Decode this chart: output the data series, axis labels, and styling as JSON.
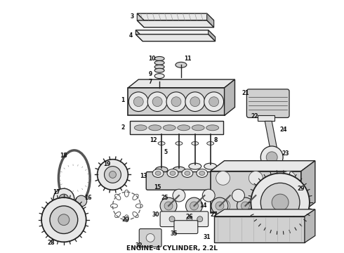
{
  "title": "ENGINE-4 CYLINDER, 2.2L",
  "title_fontsize": 6.5,
  "title_fontweight": "bold",
  "bg_color": "#ffffff",
  "fig_width": 4.9,
  "fig_height": 3.6,
  "dpi": 100,
  "label_fontsize": 5.5,
  "label_color": "#111111",
  "edge_color": "#222222",
  "face_light": "#e8e8e8",
  "face_mid": "#d0d0d0",
  "face_dark": "#b8b8b8"
}
